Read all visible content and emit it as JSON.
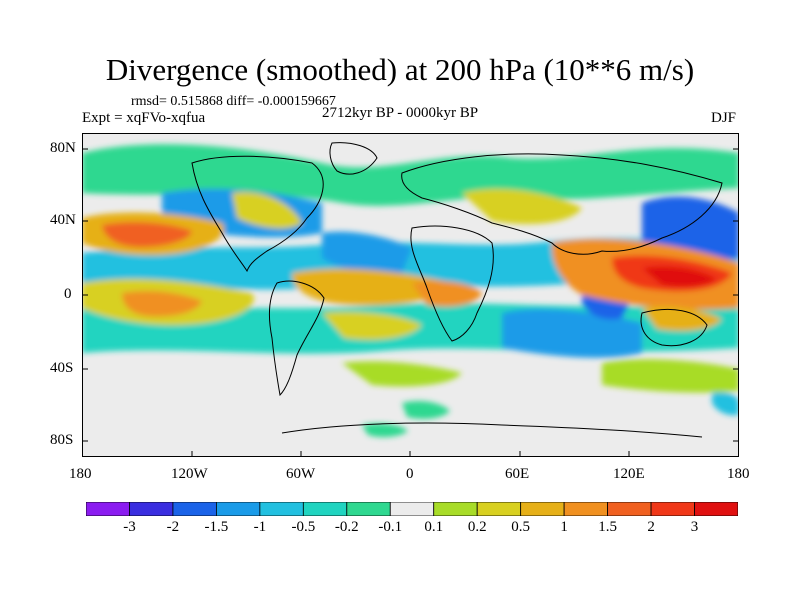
{
  "title": "Divergence (smoothed) at 200 hPa (10**6 m/s)",
  "stats": "rmsd= 0.515868 diff= -0.000159667",
  "experiment": "Expt = xqFVo-xqfua",
  "period": "2712kyr BP - 0000kyr BP",
  "season": "DJF",
  "lat_labels": [
    "80N",
    "40N",
    "0",
    "40S",
    "80S"
  ],
  "lon_labels": [
    "180",
    "120W",
    "60W",
    "0",
    "60E",
    "120E",
    "180"
  ],
  "colorbar": {
    "labels": [
      "-3",
      "-2",
      "-1.5",
      "-1",
      "-0.5",
      "-0.2",
      "-0.1",
      "0.1",
      "0.2",
      "0.5",
      "1",
      "1.5",
      "2",
      "3"
    ],
    "colors": [
      "#8b1cf0",
      "#3a2ee0",
      "#1b63e8",
      "#1a9be8",
      "#22c0e0",
      "#20d4c0",
      "#2fd890",
      "#ececec",
      "#a8dc28",
      "#d8d020",
      "#e6b018",
      "#f09020",
      "#f06020",
      "#f03818",
      "#e01010"
    ]
  },
  "colors": {
    "land_outline": "#000000",
    "background": "#ececec"
  }
}
